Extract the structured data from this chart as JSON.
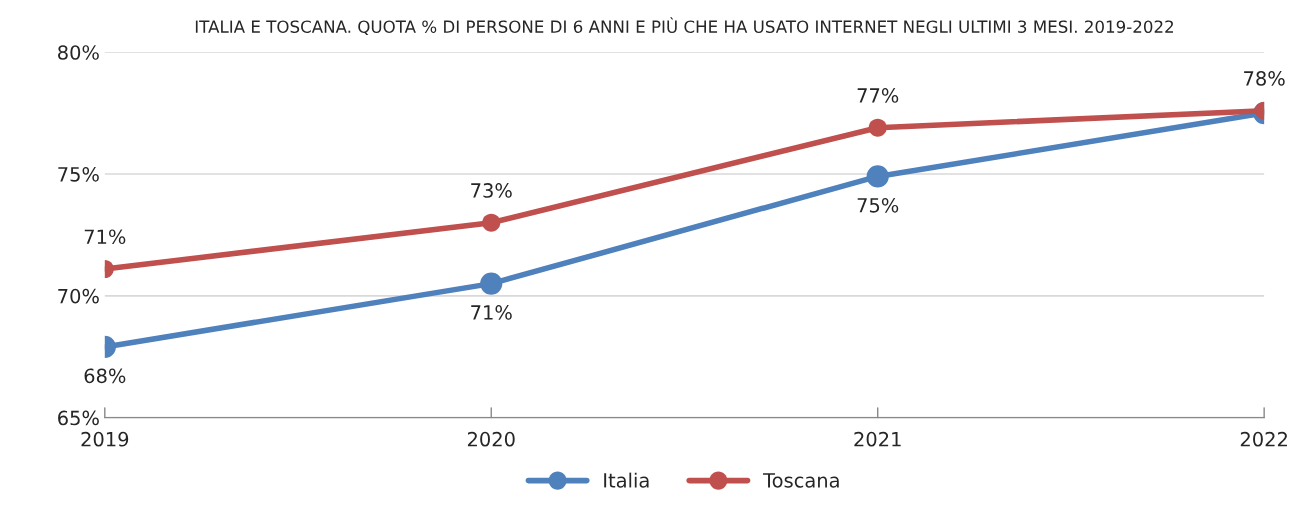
{
  "chart_data": {
    "type": "line",
    "title": "ITALIA E TOSCANA. QUOTA % DI PERSONE DI 6 ANNI E PIÙ CHE HA USATO INTERNET NEGLI ULTIMI 3 MESI. 2019-2022",
    "categories": [
      "2019",
      "2020",
      "2021",
      "2022"
    ],
    "series": [
      {
        "name": "Italia",
        "color": "#4f81bd",
        "values": [
          67.9,
          70.5,
          74.9,
          77.5
        ],
        "value_labels": [
          "68%",
          "71%",
          "75%",
          null
        ]
      },
      {
        "name": "Toscana",
        "color": "#c0504d",
        "values": [
          71.1,
          73.0,
          76.9,
          77.6
        ],
        "value_labels": [
          "71%",
          "73%",
          "77%",
          "78%"
        ]
      }
    ],
    "ylim": [
      65,
      80
    ],
    "yticks": [
      {
        "value": 65,
        "label": "65%"
      },
      {
        "value": 70,
        "label": "70%"
      },
      {
        "value": 75,
        "label": "75%"
      },
      {
        "value": 80,
        "label": "80%"
      }
    ],
    "grid": "y",
    "legend": "bottom",
    "marker": "circle",
    "line_style": "solid"
  }
}
